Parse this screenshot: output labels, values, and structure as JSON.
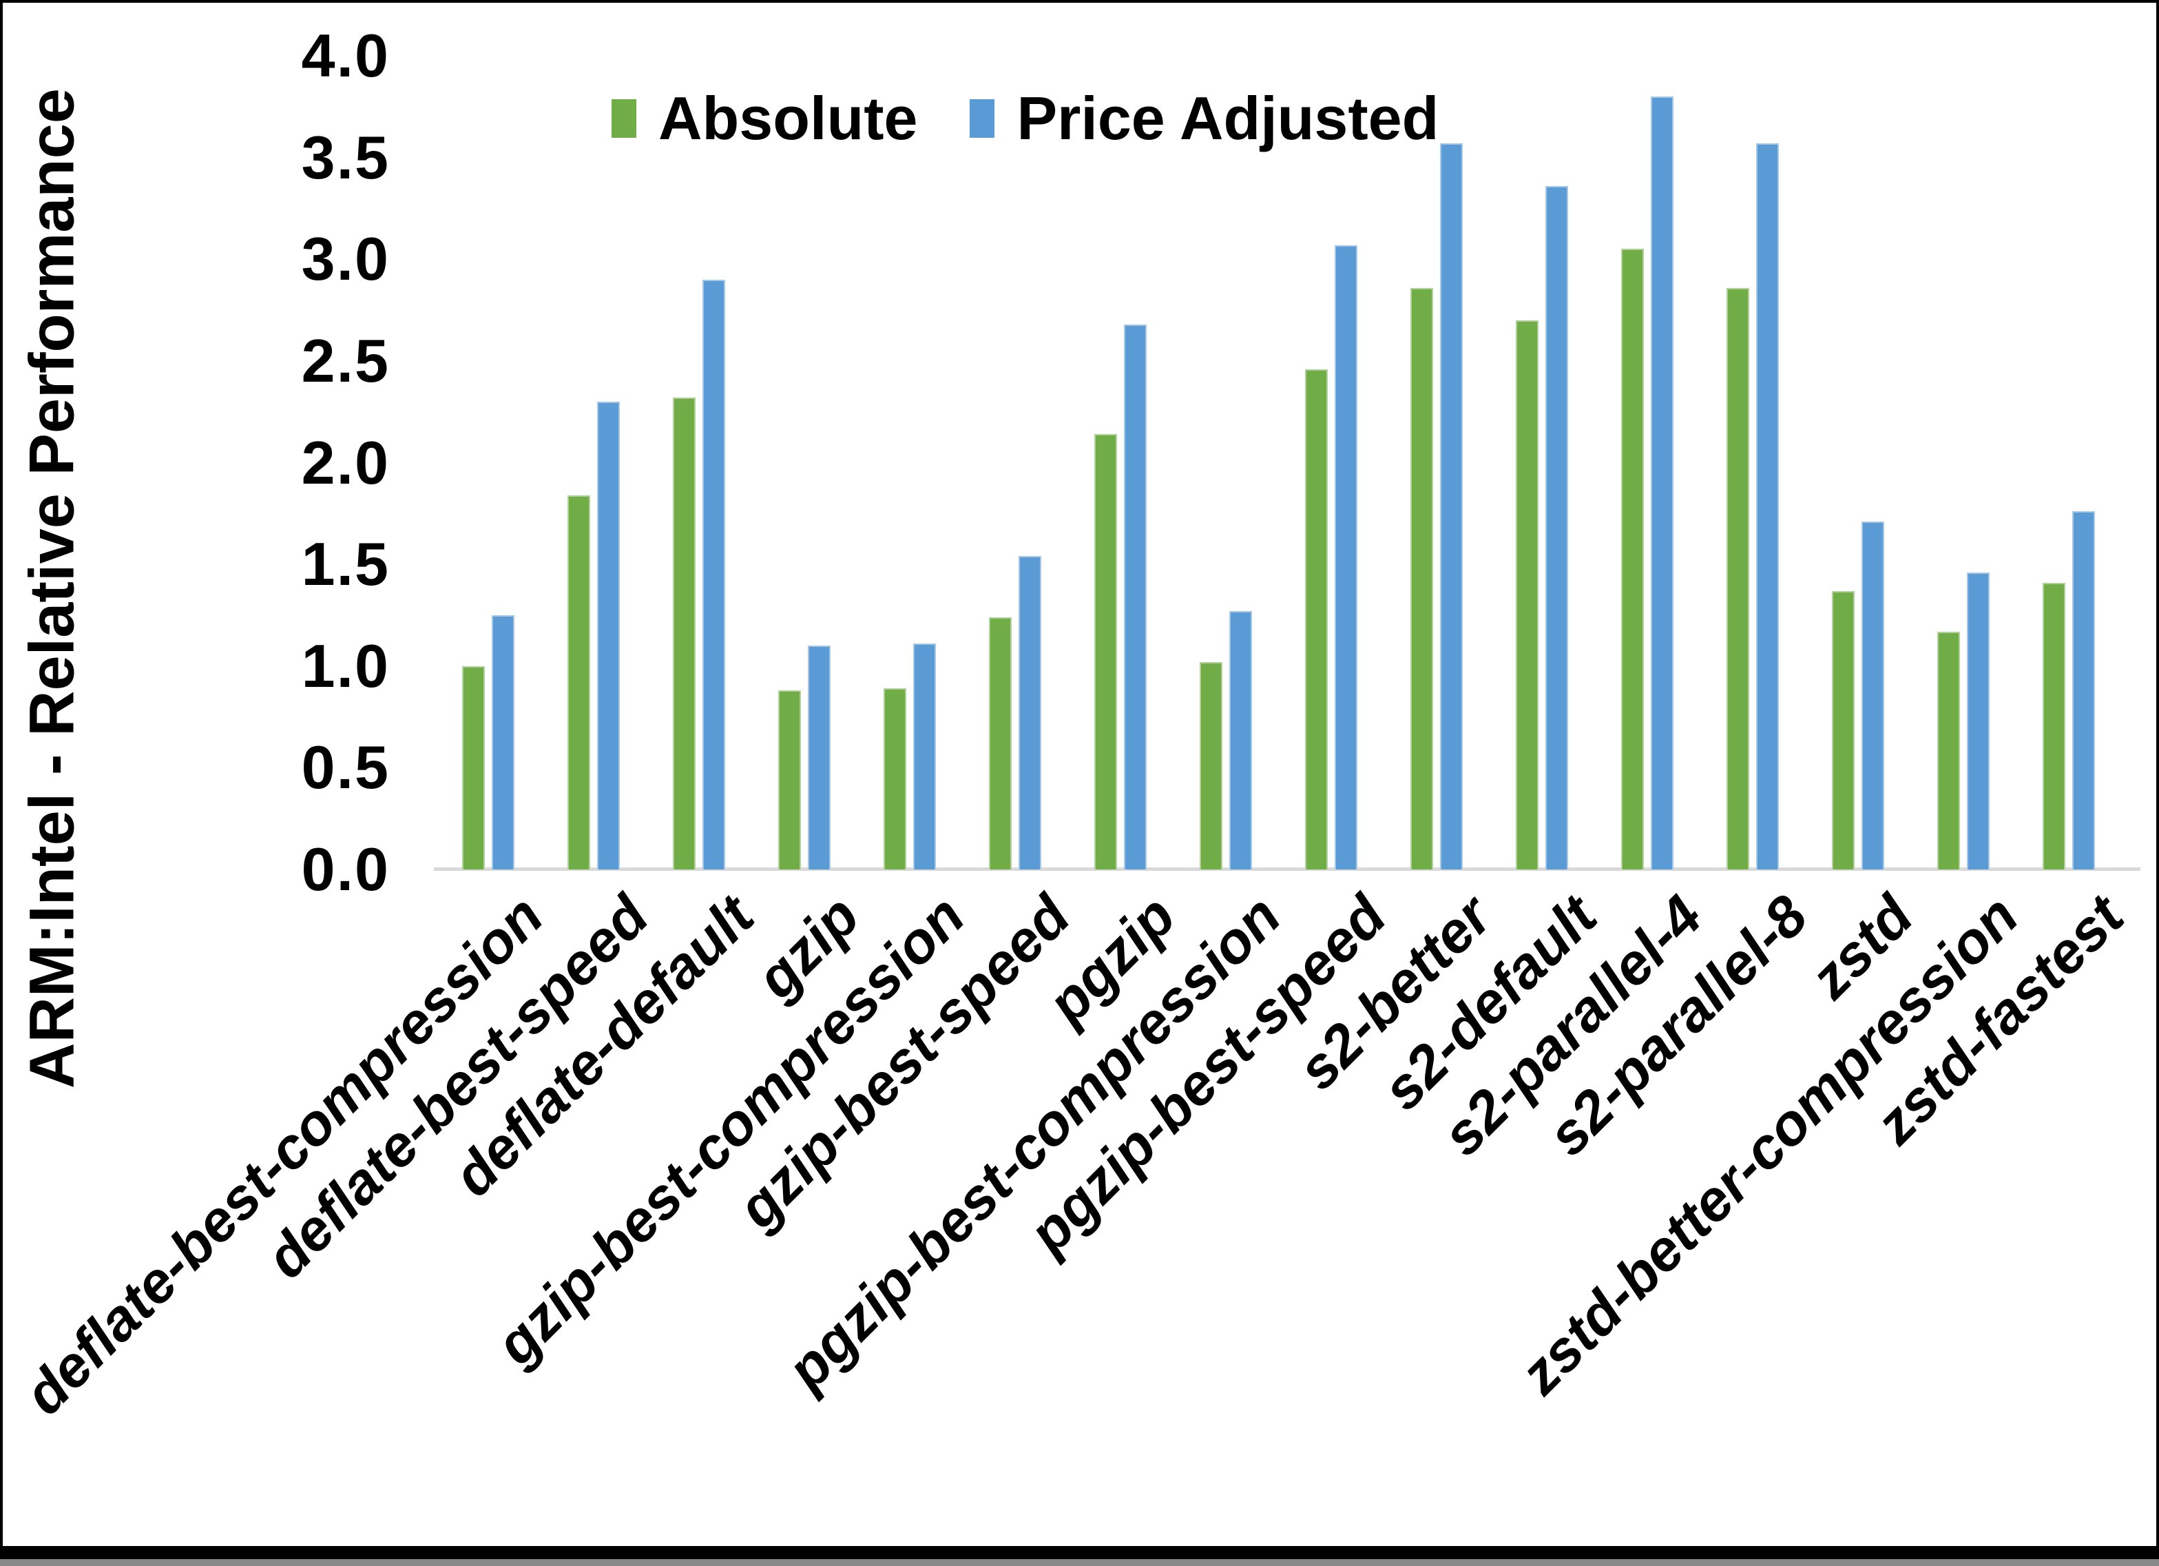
{
  "figure": {
    "background": "#ffffff",
    "border_color": "#000000",
    "axis_line_color": "#d9d9d9"
  },
  "legend": {
    "items": [
      {
        "label": "Absolute",
        "color": "#70AD47"
      },
      {
        "label": "Price Adjusted",
        "color": "#5B9BD5"
      }
    ]
  },
  "y_axis": {
    "title": "ARM:Intel - Relative Performance",
    "tick_labels": [
      "0.0",
      "0.5",
      "1.0",
      "1.5",
      "2.0",
      "2.5",
      "3.0",
      "3.5",
      "4.0"
    ]
  },
  "chart_data": {
    "type": "bar",
    "title": "",
    "xlabel": "",
    "ylabel": "ARM:Intel - Relative Performance",
    "ylim": [
      0.0,
      4.0
    ],
    "y_tick_step": 0.5,
    "grid": false,
    "legend_position": "top-center",
    "categories": [
      "deflate-best-compression",
      "deflate-best-speed",
      "deflate-default",
      "gzip",
      "gzip-best-compression",
      "gzip-best-speed",
      "pgzip",
      "pgzip-best-compression",
      "pgzip-best-speed",
      "s2-better",
      "s2-default",
      "s2-parallel-4",
      "s2-parallel-8",
      "zstd",
      "zstd-better-compression",
      "zstd-fastest"
    ],
    "series": [
      {
        "name": "Absolute",
        "color": "#70AD47",
        "values": [
          1.0,
          1.84,
          2.32,
          0.88,
          0.89,
          1.24,
          2.14,
          1.02,
          2.46,
          2.86,
          2.7,
          3.05,
          2.86,
          1.37,
          1.17,
          1.41
        ]
      },
      {
        "name": "Price Adjusted",
        "color": "#5B9BD5",
        "values": [
          1.25,
          2.3,
          2.9,
          1.1,
          1.11,
          1.54,
          2.68,
          1.27,
          3.07,
          3.57,
          3.36,
          3.8,
          3.57,
          1.71,
          1.46,
          1.76
        ]
      }
    ]
  }
}
